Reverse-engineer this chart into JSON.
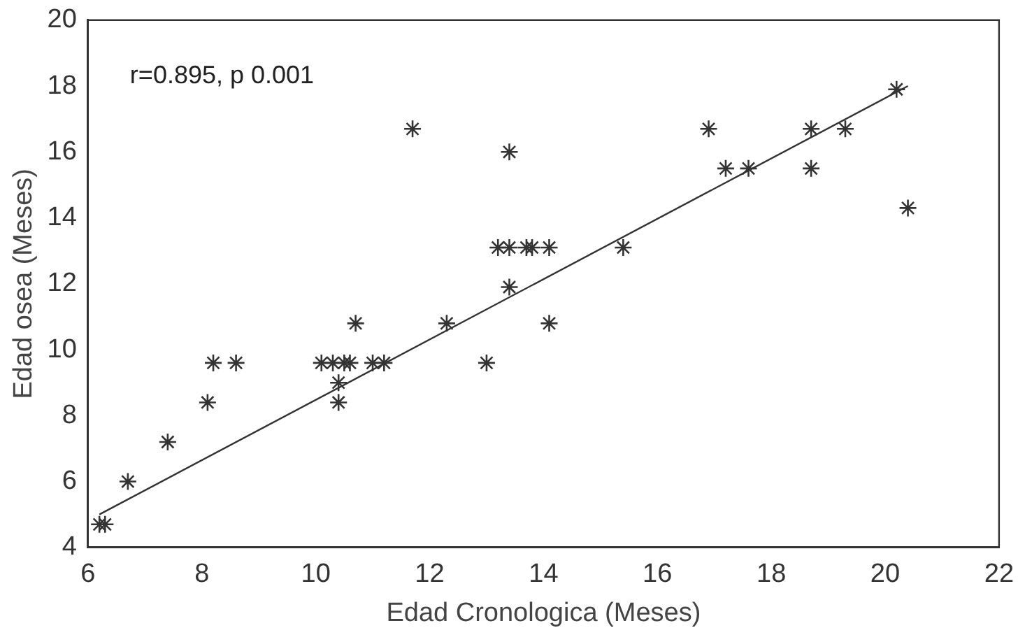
{
  "chart_data": {
    "type": "scatter",
    "xlabel": "Edad Cronologica (Meses)",
    "ylabel": "Edad osea (Meses)",
    "annotations": [
      "r=0.895, p 0.001"
    ],
    "xlim": [
      6,
      22
    ],
    "xticks": [
      6,
      8,
      10,
      12,
      14,
      16,
      18,
      20,
      22
    ],
    "ylim": [
      4,
      20
    ],
    "yticks": [
      4,
      6,
      8,
      10,
      12,
      14,
      16,
      18,
      20
    ],
    "grid": false,
    "legend": false,
    "marker": "cross",
    "series": [
      {
        "color": "#333333",
        "x": [
          6.2,
          6.3,
          6.7,
          7.4,
          8.1,
          8.2,
          8.6,
          10.1,
          10.3,
          10.5,
          10.6,
          11.0,
          11.2,
          10.4,
          10.4,
          10.7,
          11.7,
          12.3,
          13.0,
          13.2,
          13.4,
          13.7,
          13.8,
          14.1,
          13.4,
          13.4,
          14.1,
          15.4,
          16.9,
          17.2,
          17.6,
          18.7,
          18.7,
          19.3,
          20.2,
          20.4
        ],
        "values": [
          4.7,
          4.7,
          6.0,
          7.2,
          8.4,
          9.6,
          9.6,
          9.6,
          9.6,
          9.6,
          9.6,
          9.6,
          9.6,
          9.0,
          8.4,
          10.8,
          16.7,
          10.8,
          9.6,
          13.1,
          13.1,
          13.1,
          13.1,
          13.1,
          16.0,
          11.9,
          10.8,
          13.1,
          16.7,
          15.5,
          15.5,
          16.7,
          15.5,
          16.7,
          17.9,
          14.3
        ]
      },
      {
        "type": "line",
        "color": "#333333",
        "x": [
          6.2,
          20.4
        ],
        "values": [
          5.0,
          18.0
        ],
        "marker": "none"
      }
    ]
  }
}
